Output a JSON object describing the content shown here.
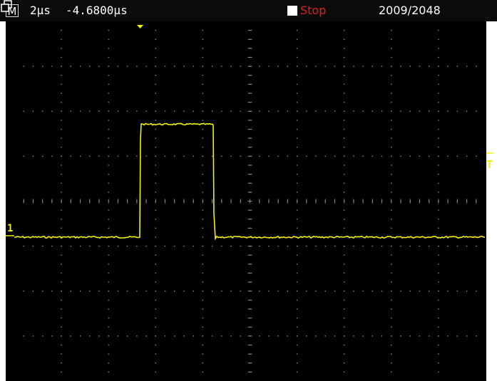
{
  "header": {
    "mode_label": "M",
    "timebase": "2µs",
    "horizontal_position": "-4.6800µs",
    "run_state": "Stop",
    "acquisition_count": "2009/2048"
  },
  "markers": {
    "channel_label": "1",
    "trigger_label": "T"
  },
  "colors": {
    "trace": "#f2f200",
    "stop": "#e02020",
    "grid": "#8a8a8a"
  },
  "icons": {
    "stop": "stop-square-icon",
    "acquisition": "stacked-frames-icon",
    "trigger_position": "triangle-down-icon",
    "channel_ground": "channel-marker-icon",
    "trigger_level": "trigger-level-icon"
  }
}
